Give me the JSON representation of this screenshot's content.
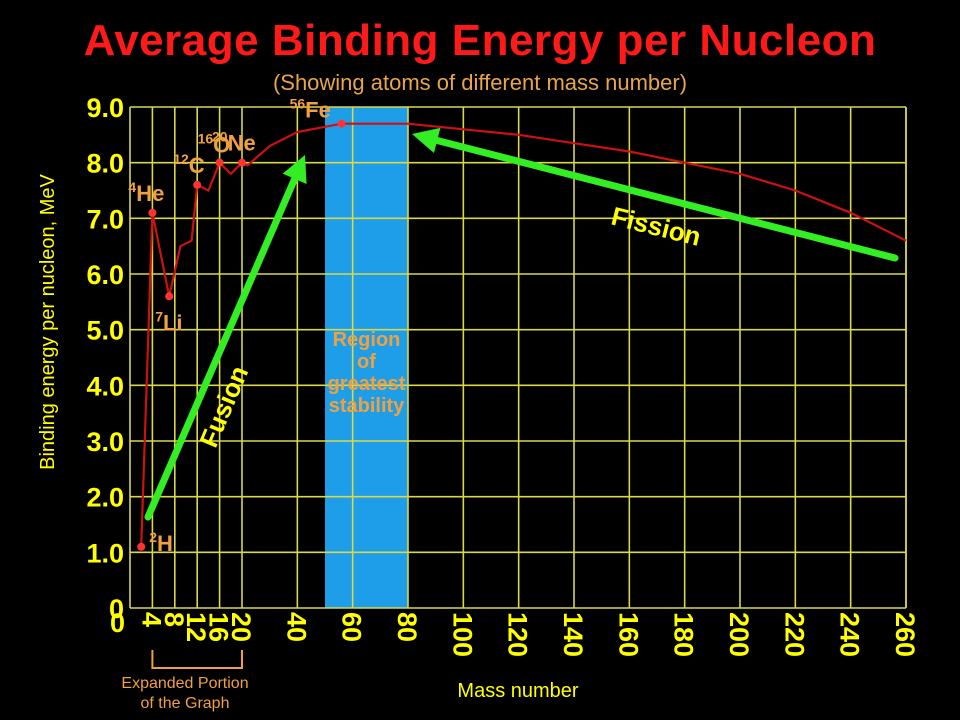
{
  "chart_data": {
    "type": "line",
    "title": "Average Binding Energy per Nucleon",
    "subtitle": "(Showing atoms of different mass number)",
    "xlabel": "Mass number",
    "ylabel": "Binding energy per nucleon, MeV",
    "y_ticks": [
      "0",
      "1.0",
      "2.0",
      "3.0",
      "4.0",
      "5.0",
      "6.0",
      "7.0",
      "8.0",
      "9.0"
    ],
    "x_ticks_expanded": [
      "4",
      "8",
      "12",
      "16",
      "20"
    ],
    "x_ticks_main": [
      "40",
      "60",
      "80",
      "100",
      "120",
      "140",
      "160",
      "180",
      "200",
      "220",
      "240",
      "260"
    ],
    "expanded_note": [
      "Expanded Portion",
      "of the Graph"
    ],
    "grid": true,
    "ylim": [
      0,
      9
    ],
    "series": [
      {
        "values": [
          {
            "x": 2,
            "y": 1.1
          },
          {
            "x": 4,
            "y": 7.1
          },
          {
            "x": 7,
            "y": 5.6
          },
          {
            "x": 9,
            "y": 6.5
          },
          {
            "x": 11,
            "y": 6.6
          },
          {
            "x": 12,
            "y": 7.6
          },
          {
            "x": 14,
            "y": 7.5
          },
          {
            "x": 16,
            "y": 8.0
          },
          {
            "x": 18,
            "y": 7.8
          },
          {
            "x": 20,
            "y": 8.0
          },
          {
            "x": 22,
            "y": 7.95
          },
          {
            "x": 30,
            "y": 8.3
          },
          {
            "x": 40,
            "y": 8.55
          },
          {
            "x": 56,
            "y": 8.7
          },
          {
            "x": 70,
            "y": 8.7
          },
          {
            "x": 80,
            "y": 8.7
          },
          {
            "x": 100,
            "y": 8.6
          },
          {
            "x": 120,
            "y": 8.5
          },
          {
            "x": 140,
            "y": 8.35
          },
          {
            "x": 160,
            "y": 8.2
          },
          {
            "x": 180,
            "y": 8.0
          },
          {
            "x": 200,
            "y": 7.8
          },
          {
            "x": 220,
            "y": 7.5
          },
          {
            "x": 240,
            "y": 7.1
          },
          {
            "x": 260,
            "y": 6.6
          }
        ]
      }
    ],
    "annotations": {
      "nuclides": [
        {
          "mass": "2",
          "symbol": "H"
        },
        {
          "mass": "4",
          "symbol": "He"
        },
        {
          "mass": "7",
          "symbol": "Li"
        },
        {
          "mass": "12",
          "symbol": "C"
        },
        {
          "mass": "16",
          "symbol": "O"
        },
        {
          "mass": "20",
          "symbol": "Ne"
        },
        {
          "mass": "56",
          "symbol": "Fe"
        }
      ],
      "region_lines": [
        "Region",
        "of",
        "greatest",
        "stability"
      ],
      "region_x_range": [
        50,
        80
      ],
      "fusion_label": "Fusion",
      "fission_label": "Fission"
    },
    "colors": {
      "background": "#000000",
      "grid": "#d8d84a",
      "axis_text": "#ffff00",
      "curve": "#cc1111",
      "point": "#ff3333",
      "title": "#ff1a1a",
      "annotation": "#f0a040",
      "region": "#1e9ee8",
      "arrow": "#33ee22"
    }
  }
}
